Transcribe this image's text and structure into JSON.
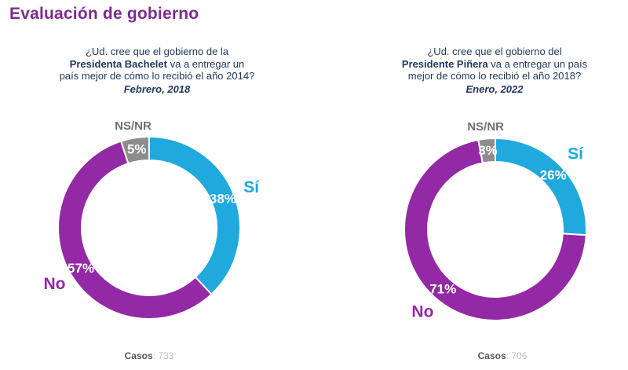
{
  "page": {
    "title": "Evaluación de gobierno",
    "background": "#FFFFFF"
  },
  "theme": {
    "title_color": "#7C2B8F",
    "question_color": "#20395C",
    "yes_color": "#1FA9DD",
    "no_color": "#9329A4",
    "nsnr_slice_color": "#8C8C8C",
    "nsnr_label_color": "#6F6F6F",
    "percent_label_color": "#FFFFFF",
    "cases_label_color": "#55565A",
    "cases_value_color": "#BDBEC0"
  },
  "labels": {
    "cases_separator": ":"
  },
  "chart_data": [
    {
      "type": "pie",
      "subtype": "donut",
      "question_lines": [
        [
          {
            "t": "¿Ud. cree que el gobierno de la",
            "b": 0
          }
        ],
        [
          {
            "t": "Presidenta Bachelet",
            "b": 1
          },
          {
            "t": " va a entregar un",
            "b": 0
          }
        ],
        [
          {
            "t": "país mejor de cómo lo recibió el año 2014?",
            "b": 0
          }
        ]
      ],
      "date": "Febrero, 2018",
      "slices": [
        {
          "label": "Sí",
          "value": 38,
          "color": "#1FA9DD",
          "label_color": "#1FA9DD"
        },
        {
          "label": "No",
          "value": 57,
          "color": "#9329A4",
          "label_color": "#9329A4"
        },
        {
          "label": "NS/NR",
          "value": 5,
          "color": "#8C8C8C",
          "label_color": "#6F6F6F"
        }
      ],
      "cases": {
        "label": "Casos",
        "value": "733"
      }
    },
    {
      "type": "pie",
      "subtype": "donut",
      "question_lines": [
        [
          {
            "t": "¿Ud. cree que el gobierno del",
            "b": 0
          }
        ],
        [
          {
            "t": "Presidente Piñera",
            "b": 1
          },
          {
            "t": " va a entregar un país",
            "b": 0
          }
        ],
        [
          {
            "t": "mejor de cómo lo recibió el año 2018?",
            "b": 0
          }
        ]
      ],
      "date": "Enero, 2022",
      "slices": [
        {
          "label": "Sí",
          "value": 26,
          "color": "#1FA9DD",
          "label_color": "#1FA9DD"
        },
        {
          "label": "No",
          "value": 71,
          "color": "#9329A4",
          "label_color": "#9329A4"
        },
        {
          "label": "NS/NR",
          "value": 3,
          "color": "#8C8C8C",
          "label_color": "#6F6F6F"
        }
      ],
      "cases": {
        "label": "Casos",
        "value": "706"
      }
    }
  ]
}
